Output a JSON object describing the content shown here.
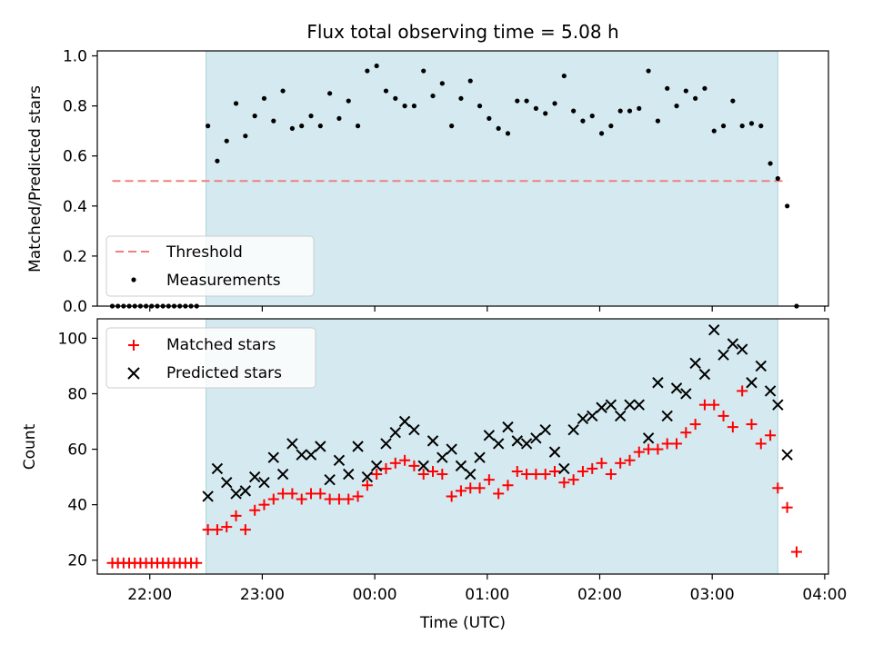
{
  "chart_data": [
    {
      "type": "scatter",
      "title": "Flux total observing time = 5.08 h",
      "xlabel": "",
      "ylabel": "Matched/Predicted stars",
      "xlim": [
        "21:32",
        "04:02"
      ],
      "ylim": [
        0,
        1.02
      ],
      "yticks": [
        0.0,
        0.2,
        0.4,
        0.6,
        0.8,
        1.0
      ],
      "ytick_labels": [
        "0.0",
        "0.2",
        "0.4",
        "0.6",
        "0.8",
        "1.0"
      ],
      "observing_window": [
        "22:30",
        "03:35"
      ],
      "shade_color": "#d4eaf0",
      "legend_position": "lower-left",
      "legend": [
        {
          "label": "Threshold",
          "marker": "dashed-line",
          "color": "#f08080"
        },
        {
          "label": "Measurements",
          "marker": "dot",
          "color": "#000000"
        }
      ],
      "threshold": {
        "name": "Threshold",
        "value": 0.5,
        "x_range": [
          "21:40",
          "03:40"
        ],
        "color": "#f08080"
      },
      "series": [
        {
          "name": "Measurements",
          "color": "#000000",
          "x": [
            "21:40",
            "21:43",
            "21:46",
            "21:49",
            "21:52",
            "21:55",
            "21:58",
            "22:01",
            "22:04",
            "22:07",
            "22:10",
            "22:13",
            "22:16",
            "22:19",
            "22:22",
            "22:25",
            "22:31",
            "22:36",
            "22:41",
            "22:46",
            "22:51",
            "22:56",
            "23:01",
            "23:06",
            "23:11",
            "23:16",
            "23:21",
            "23:26",
            "23:31",
            "23:36",
            "23:41",
            "23:46",
            "23:51",
            "23:56",
            "00:01",
            "00:06",
            "00:11",
            "00:16",
            "00:21",
            "00:26",
            "00:31",
            "00:36",
            "00:41",
            "00:46",
            "00:51",
            "00:56",
            "01:01",
            "01:06",
            "01:11",
            "01:16",
            "01:21",
            "01:26",
            "01:31",
            "01:36",
            "01:41",
            "01:46",
            "01:51",
            "01:56",
            "02:01",
            "02:06",
            "02:11",
            "02:16",
            "02:21",
            "02:26",
            "02:31",
            "02:36",
            "02:41",
            "02:46",
            "02:51",
            "02:56",
            "03:01",
            "03:06",
            "03:11",
            "03:16",
            "03:21",
            "03:26",
            "03:31",
            "03:35",
            "03:40",
            "03:45"
          ],
          "y": [
            0,
            0,
            0,
            0,
            0,
            0,
            0,
            0,
            0,
            0,
            0,
            0,
            0,
            0,
            0,
            0,
            0.72,
            0.58,
            0.66,
            0.81,
            0.68,
            0.76,
            0.83,
            0.74,
            0.86,
            0.71,
            0.72,
            0.76,
            0.72,
            0.85,
            0.75,
            0.82,
            0.72,
            0.94,
            0.96,
            0.86,
            0.83,
            0.8,
            0.8,
            0.94,
            0.84,
            0.89,
            0.72,
            0.83,
            0.9,
            0.8,
            0.75,
            0.71,
            0.69,
            0.82,
            0.82,
            0.79,
            0.77,
            0.81,
            0.92,
            0.78,
            0.74,
            0.76,
            0.69,
            0.72,
            0.78,
            0.78,
            0.79,
            0.94,
            0.74,
            0.87,
            0.8,
            0.86,
            0.83,
            0.87,
            0.7,
            0.72,
            0.82,
            0.72,
            0.73,
            0.72,
            0.57,
            0.51,
            0.4,
            0.0
          ]
        }
      ]
    },
    {
      "type": "scatter",
      "title": "",
      "xlabel": "Time (UTC)",
      "ylabel": "Count",
      "xlim": [
        "21:32",
        "04:02"
      ],
      "ylim": [
        15,
        107
      ],
      "xticks": [
        "22:00",
        "23:00",
        "00:00",
        "01:00",
        "02:00",
        "03:00",
        "04:00"
      ],
      "yticks": [
        20,
        40,
        60,
        80,
        100
      ],
      "ytick_labels": [
        "20",
        "40",
        "60",
        "80",
        "100"
      ],
      "observing_window": [
        "22:30",
        "03:35"
      ],
      "shade_color": "#d4eaf0",
      "legend_position": "upper-left",
      "legend": [
        {
          "label": "Matched stars",
          "marker": "plus",
          "color": "#ff0000"
        },
        {
          "label": "Predicted stars",
          "marker": "x",
          "color": "#000000"
        }
      ],
      "series": [
        {
          "name": "Matched stars",
          "color": "#ff0000",
          "x": [
            "21:40",
            "21:43",
            "21:46",
            "21:49",
            "21:52",
            "21:55",
            "21:58",
            "22:01",
            "22:04",
            "22:07",
            "22:10",
            "22:13",
            "22:16",
            "22:19",
            "22:22",
            "22:25",
            "22:31",
            "22:36",
            "22:41",
            "22:46",
            "22:51",
            "22:56",
            "23:01",
            "23:06",
            "23:11",
            "23:16",
            "23:21",
            "23:26",
            "23:31",
            "23:36",
            "23:41",
            "23:46",
            "23:51",
            "23:56",
            "00:01",
            "00:06",
            "00:11",
            "00:16",
            "00:21",
            "00:26",
            "00:31",
            "00:36",
            "00:41",
            "00:46",
            "00:51",
            "00:56",
            "01:01",
            "01:06",
            "01:11",
            "01:16",
            "01:21",
            "01:26",
            "01:31",
            "01:36",
            "01:41",
            "01:46",
            "01:51",
            "01:56",
            "02:01",
            "02:06",
            "02:11",
            "02:16",
            "02:21",
            "02:26",
            "02:31",
            "02:36",
            "02:41",
            "02:46",
            "02:51",
            "02:56",
            "03:01",
            "03:06",
            "03:11",
            "03:16",
            "03:21",
            "03:26",
            "03:31",
            "03:35",
            "03:40",
            "03:45"
          ],
          "y": [
            19,
            19,
            19,
            19,
            19,
            19,
            19,
            19,
            19,
            19,
            19,
            19,
            19,
            19,
            19,
            19,
            31,
            31,
            32,
            36,
            31,
            38,
            40,
            42,
            44,
            44,
            42,
            44,
            44,
            42,
            42,
            42,
            43,
            47,
            51,
            53,
            55,
            56,
            54,
            51,
            52,
            51,
            43,
            45,
            46,
            46,
            49,
            44,
            47,
            52,
            51,
            51,
            51,
            52,
            48,
            49,
            52,
            53,
            55,
            51,
            55,
            56,
            59,
            60,
            60,
            62,
            62,
            66,
            69,
            76,
            76,
            72,
            68,
            81,
            69,
            62,
            65,
            46,
            39,
            23
          ]
        },
        {
          "name": "Predicted stars",
          "color": "#000000",
          "x": [
            "22:31",
            "22:36",
            "22:41",
            "22:46",
            "22:51",
            "22:56",
            "23:01",
            "23:06",
            "23:11",
            "23:16",
            "23:21",
            "23:26",
            "23:31",
            "23:36",
            "23:41",
            "23:46",
            "23:51",
            "23:56",
            "00:01",
            "00:06",
            "00:11",
            "00:16",
            "00:21",
            "00:26",
            "00:31",
            "00:36",
            "00:41",
            "00:46",
            "00:51",
            "00:56",
            "01:01",
            "01:06",
            "01:11",
            "01:16",
            "01:21",
            "01:26",
            "01:31",
            "01:36",
            "01:41",
            "01:46",
            "01:51",
            "01:56",
            "02:01",
            "02:06",
            "02:11",
            "02:16",
            "02:21",
            "02:26",
            "02:31",
            "02:36",
            "02:41",
            "02:46",
            "02:51",
            "02:56",
            "03:01",
            "03:06",
            "03:11",
            "03:16",
            "03:21",
            "03:26",
            "03:31",
            "03:35",
            "03:40"
          ],
          "y": [
            43,
            53,
            48,
            44,
            45,
            50,
            48,
            57,
            51,
            62,
            58,
            58,
            61,
            49,
            56,
            51,
            61,
            50,
            54,
            62,
            66,
            70,
            67,
            54,
            63,
            57,
            60,
            54,
            51,
            57,
            65,
            62,
            68,
            63,
            62,
            64,
            67,
            59,
            53,
            67,
            71,
            72,
            75,
            76,
            72,
            76,
            76,
            64,
            84,
            72,
            82,
            80,
            91,
            87,
            103,
            94,
            98,
            96,
            84,
            90,
            81,
            76,
            58
          ]
        }
      ]
    }
  ]
}
